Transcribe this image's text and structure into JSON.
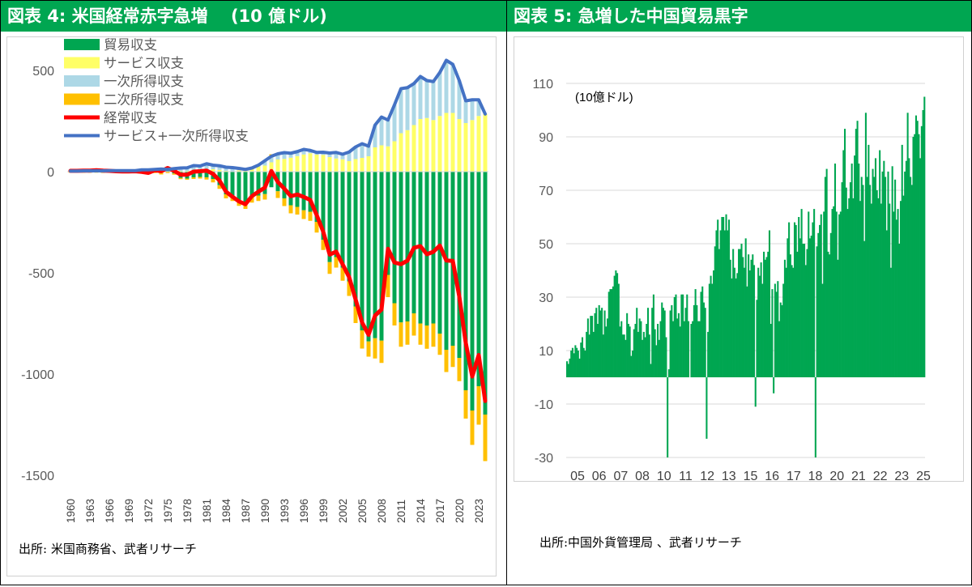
{
  "left_panel": {
    "title": "図表 4: 米国経常赤字急増　 (10 億ドル)",
    "source": "出所: 米国商務省、武者リサーチ"
  },
  "right_panel": {
    "title": "図表 5: 急増した中国貿易黒字",
    "source": "出所:中国外貨管理局 、武者リサーチ"
  },
  "colors": {
    "header_green": "#00a651",
    "trade": "#00a651",
    "services": "#ffff66",
    "primary_income": "#add8e6",
    "secondary_income": "#ffc000",
    "current_account": "#ff0000",
    "services_plus_primary": "#4472c4"
  },
  "chart_data": [
    {
      "type": "bar",
      "stacked": true,
      "title": "図表 4: 米国経常赤字急増　 (10 億ドル)",
      "x": [
        1960,
        1961,
        1962,
        1963,
        1964,
        1965,
        1966,
        1967,
        1968,
        1969,
        1970,
        1971,
        1972,
        1973,
        1974,
        1975,
        1976,
        1977,
        1978,
        1979,
        1980,
        1981,
        1982,
        1983,
        1984,
        1985,
        1986,
        1987,
        1988,
        1989,
        1990,
        1991,
        1992,
        1993,
        1994,
        1995,
        1996,
        1997,
        1998,
        1999,
        2000,
        2001,
        2002,
        2003,
        2004,
        2005,
        2006,
        2007,
        2008,
        2009,
        2010,
        2011,
        2012,
        2013,
        2014,
        2015,
        2016,
        2017,
        2018,
        2019,
        2020,
        2021,
        2022,
        2023,
        2024
      ],
      "x_tick_labels": [
        "1960",
        "1963",
        "1966",
        "1969",
        "1972",
        "1975",
        "1978",
        "1981",
        "1984",
        "1987",
        "1990",
        "1993",
        "1996",
        "1999",
        "2002",
        "2005",
        "2008",
        "2011",
        "2014",
        "2017",
        "2020",
        "2023"
      ],
      "ylim": [
        -1500,
        600
      ],
      "y_ticks": [
        500,
        0,
        -500,
        -1000,
        -1500
      ],
      "y_tick_labels": [
        "500",
        "0",
        "-500",
        "-1000",
        "-1500"
      ],
      "legend": [
        "貿易収支",
        "サービス収支",
        "一次所得収支",
        "二次所得収支",
        "経常収支",
        "サービス+一次所得収支"
      ],
      "legend_position": "top-left",
      "series": [
        {
          "name": "貿易収支",
          "type": "bar",
          "values": [
            5,
            5,
            4,
            5,
            7,
            5,
            4,
            4,
            1,
            1,
            3,
            -2,
            -6,
            1,
            -5,
            9,
            -9,
            -31,
            -34,
            -28,
            -26,
            -28,
            -36,
            -67,
            -112,
            -122,
            -145,
            -160,
            -127,
            -118,
            -111,
            -77,
            -97,
            -132,
            -166,
            -174,
            -191,
            -198,
            -248,
            -337,
            -447,
            -422,
            -475,
            -542,
            -666,
            -784,
            -839,
            -823,
            -835,
            -510,
            -650,
            -745,
            -740,
            -700,
            -750,
            -760,
            -750,
            -800,
            -880,
            -860,
            -920,
            -1080,
            -1180,
            -1060,
            -1200
          ]
        },
        {
          "name": "サービス収支",
          "type": "bar",
          "values": [
            -1,
            -1,
            -1,
            -1,
            -1,
            -2,
            -1,
            -1,
            -1,
            -1,
            -1,
            1,
            1,
            1,
            2,
            3,
            3,
            4,
            4,
            3,
            6,
            12,
            12,
            9,
            4,
            1,
            7,
            7,
            12,
            26,
            30,
            46,
            60,
            63,
            69,
            77,
            85,
            91,
            84,
            83,
            72,
            65,
            61,
            52,
            62,
            68,
            76,
            120,
            130,
            125,
            150,
            190,
            205,
            230,
            260,
            265,
            255,
            275,
            290,
            290,
            260,
            240,
            255,
            275,
            285
          ]
        },
        {
          "name": "一次所得収支",
          "type": "bar",
          "values": [
            4,
            4,
            5,
            5,
            5,
            6,
            6,
            6,
            6,
            6,
            6,
            8,
            8,
            10,
            11,
            8,
            12,
            14,
            15,
            27,
            22,
            27,
            20,
            20,
            18,
            19,
            9,
            4,
            6,
            6,
            24,
            30,
            28,
            31,
            22,
            22,
            25,
            14,
            11,
            13,
            20,
            30,
            25,
            45,
            60,
            70,
            50,
            110,
            140,
            130,
            180,
            220,
            210,
            205,
            210,
            185,
            190,
            215,
            260,
            240,
            190,
            110,
            100,
            80,
            0
          ]
        },
        {
          "name": "二次所得収支",
          "type": "bar",
          "values": [
            -4,
            -4,
            -4,
            -4,
            -4,
            -4,
            -4,
            -5,
            -5,
            -5,
            -6,
            -7,
            -8,
            -7,
            -9,
            -7,
            -6,
            -6,
            -6,
            -8,
            -8,
            -11,
            -17,
            -18,
            -20,
            -23,
            -24,
            -24,
            -26,
            -27,
            -27,
            10,
            -33,
            -38,
            -40,
            -38,
            -43,
            -45,
            -53,
            -50,
            -58,
            -52,
            -64,
            -72,
            -82,
            -90,
            -75,
            -100,
            -110,
            -110,
            -110,
            -120,
            -115,
            -110,
            -105,
            -115,
            -115,
            -105,
            -110,
            -105,
            -115,
            -140,
            -170,
            -190,
            -230
          ]
        },
        {
          "name": "経常収支",
          "type": "line",
          "values": [
            4,
            4,
            5,
            5,
            7,
            5,
            4,
            2,
            1,
            1,
            2,
            -1,
            -6,
            7,
            2,
            18,
            4,
            -15,
            -15,
            0,
            2,
            5,
            -11,
            -44,
            -99,
            -124,
            -147,
            -161,
            -121,
            -99,
            -79,
            3,
            -51,
            -84,
            -121,
            -113,
            -125,
            -140,
            -215,
            -296,
            -410,
            -395,
            -458,
            -521,
            -631,
            -745,
            -806,
            -711,
            -681,
            -381,
            -449,
            -457,
            -440,
            -376,
            -368,
            -408,
            -396,
            -365,
            -439,
            -441,
            -616,
            -846,
            -1012,
            -906,
            -1133
          ]
        },
        {
          "name": "サービス+一次所得収支",
          "type": "line",
          "values": [
            3,
            3,
            4,
            4,
            4,
            4,
            5,
            5,
            5,
            5,
            5,
            9,
            9,
            11,
            13,
            11,
            15,
            18,
            19,
            30,
            28,
            39,
            32,
            29,
            22,
            20,
            16,
            11,
            18,
            32,
            54,
            76,
            88,
            94,
            91,
            99,
            110,
            105,
            95,
            96,
            92,
            95,
            86,
            97,
            122,
            138,
            126,
            230,
            270,
            255,
            330,
            410,
            415,
            435,
            470,
            450,
            445,
            490,
            550,
            530,
            450,
            350,
            355,
            355,
            285
          ]
        }
      ]
    },
    {
      "type": "bar",
      "title": "図表 5: 急増した中国貿易黒字",
      "unit_label": "(10億ドル)",
      "x_tick_labels": [
        "05",
        "06",
        "07",
        "08",
        "10",
        "11",
        "12",
        "13",
        "15",
        "16",
        "17",
        "18",
        "20",
        "21",
        "22",
        "23",
        "25"
      ],
      "ylim": [
        -30,
        110
      ],
      "y_ticks": [
        110,
        90,
        70,
        50,
        30,
        10,
        -10,
        -30
      ],
      "y_tick_labels": [
        "110",
        "90",
        "70",
        "50",
        "30",
        "10",
        "-10",
        "-30"
      ],
      "grid": true,
      "series": [
        {
          "name": "",
          "type": "bar",
          "values": [
            6,
            5,
            7,
            10,
            11,
            9,
            12,
            11,
            10,
            7,
            13,
            15,
            11,
            10,
            17,
            22,
            16,
            23,
            23,
            17,
            24,
            26,
            20,
            27,
            25,
            26,
            16,
            25,
            19,
            22,
            32,
            33,
            33,
            34,
            38,
            40,
            39,
            35,
            19,
            21,
            16,
            16,
            14,
            24,
            20,
            19,
            8,
            10,
            18,
            20,
            26,
            17,
            22,
            21,
            14,
            17,
            15,
            20,
            26,
            16,
            5,
            26,
            31,
            18,
            12,
            20,
            14,
            21,
            28,
            26,
            25,
            15,
            -30,
            3,
            25,
            27,
            21,
            30,
            31,
            22,
            24,
            19,
            31,
            31,
            21,
            26,
            31,
            21,
            0,
            20,
            21,
            27,
            33,
            27,
            21,
            21,
            32,
            34,
            28,
            26,
            -23,
            17,
            35,
            38,
            35,
            40,
            49,
            55,
            59,
            48,
            55,
            60,
            60,
            55,
            61,
            55,
            59,
            44,
            37,
            48,
            41,
            37,
            39,
            48,
            48,
            50,
            45,
            41,
            52,
            34,
            46,
            40,
            44,
            46,
            42,
            -11,
            29,
            41,
            38,
            43,
            35,
            47,
            44,
            45,
            47,
            55,
            20,
            33,
            -6,
            35,
            32,
            36,
            21,
            28,
            27,
            35,
            44,
            41,
            52,
            58,
            46,
            42,
            41,
            58,
            57,
            47,
            60,
            52,
            63,
            50,
            50,
            42,
            48,
            62,
            52,
            53,
            58,
            63,
            -30,
            49,
            54,
            57,
            61,
            35,
            62,
            75,
            78,
            47,
            46,
            54,
            63,
            64,
            80,
            62,
            44,
            61,
            62,
            73,
            85,
            93,
            71,
            63,
            67,
            73,
            80,
            67,
            83,
            93,
            96,
            80,
            66,
            75,
            72,
            51,
            99,
            75,
            87,
            72,
            65,
            78,
            75,
            82,
            70,
            67,
            85,
            65,
            77,
            81,
            75,
            55,
            77,
            65,
            41,
            79,
            62,
            74,
            59,
            63,
            50,
            66,
            87,
            68,
            77,
            81,
            99,
            82,
            75,
            72,
            90,
            91,
            98,
            96,
            91,
            82,
            94,
            100,
            105
          ]
        }
      ]
    }
  ]
}
